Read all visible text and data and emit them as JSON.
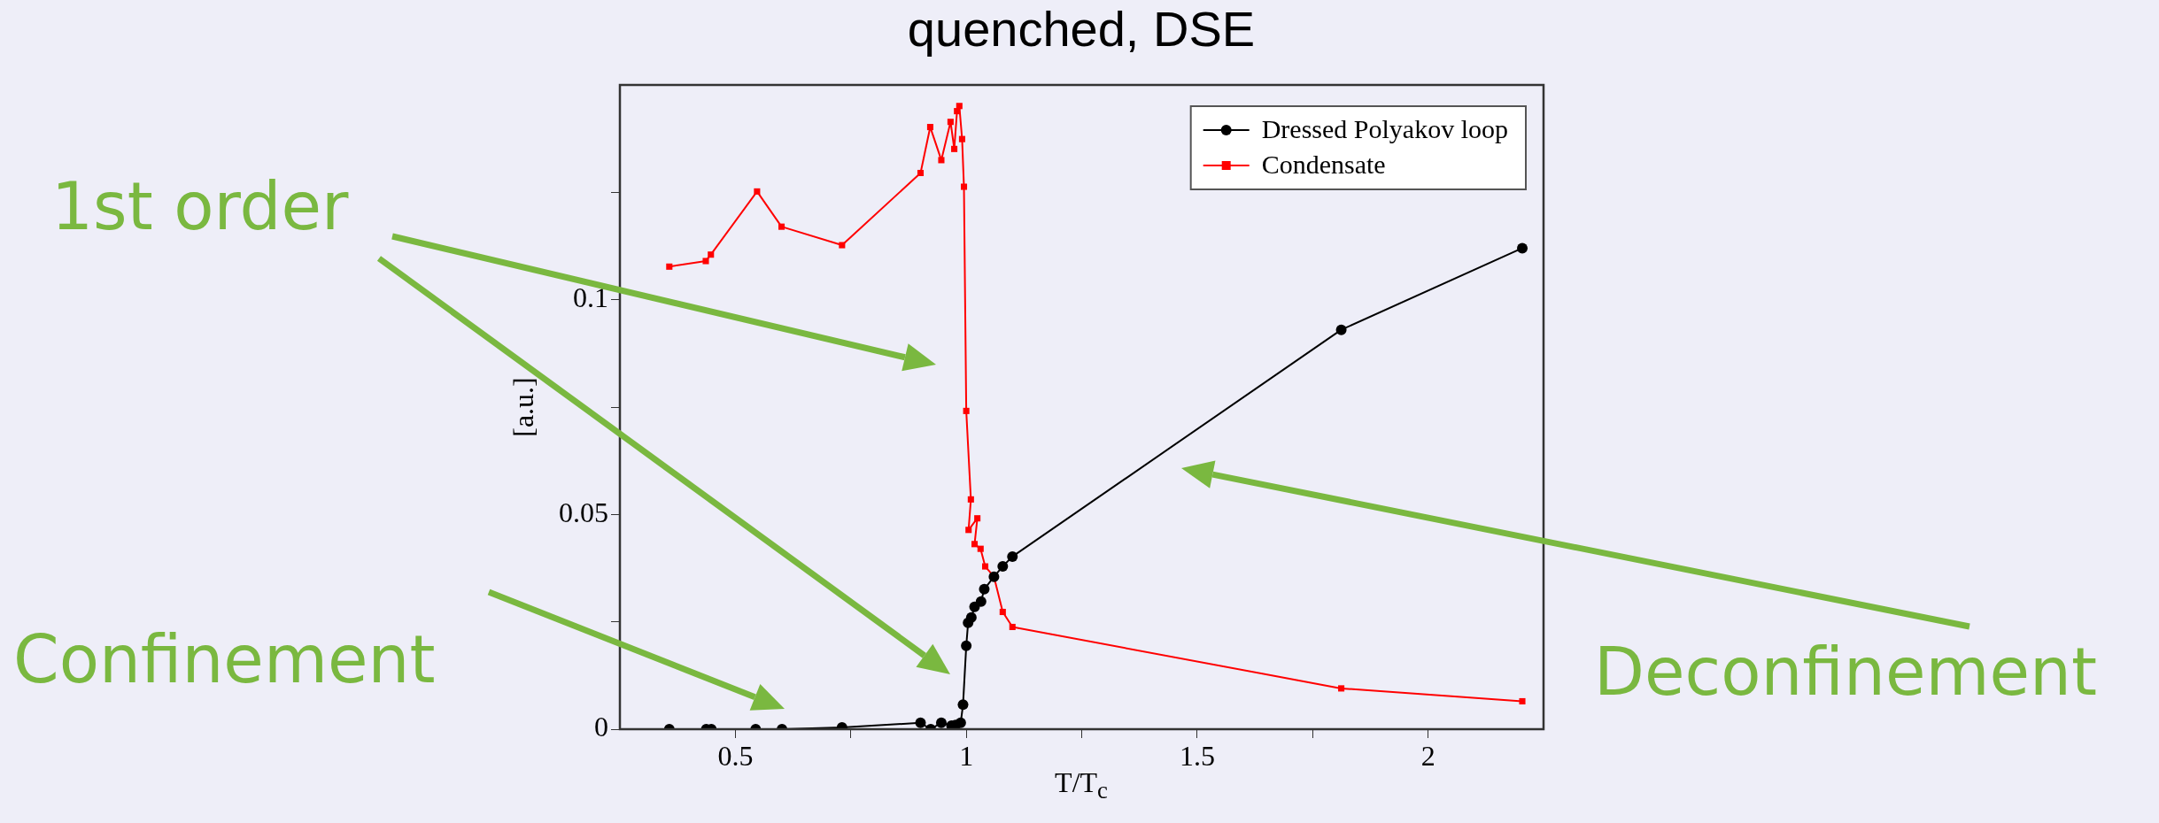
{
  "chart_data": {
    "type": "line",
    "title": "quenched, DSE",
    "xlabel": "T/T$_{c}$",
    "ylabel": "[a.u.]",
    "xlim": [
      0.25,
      2.25
    ],
    "xticks": [
      0.5,
      {
        "value": 0.75,
        "label": null
      },
      1,
      {
        "value": 1.25,
        "label": null
      },
      1.5,
      {
        "value": 1.75,
        "label": null
      },
      2
    ],
    "ylim": [
      0,
      0.15
    ],
    "yticks": [
      0,
      {
        "value": 0.025,
        "label": null
      },
      0.05,
      {
        "value": 0.075,
        "label": null
      },
      0.1,
      {
        "value": 0.125,
        "label": null
      }
    ],
    "grid": false,
    "legend": "top right",
    "line_style": "solid",
    "series": [
      {
        "name": "Dressed Polyakov loop",
        "color": "#000000",
        "marker": "circle",
        "x": [
          0.357,
          0.437,
          0.448,
          0.544,
          0.601,
          0.731,
          0.901,
          0.923,
          0.946,
          0.968,
          0.977,
          0.988,
          0.993,
          1.0,
          1.004,
          1.011,
          1.018,
          1.032,
          1.039,
          1.06,
          1.079,
          1.1,
          1.812,
          2.204
        ],
        "values": [
          0,
          0,
          0,
          0,
          0,
          0.0004,
          0.0015,
          0,
          0.0015,
          0.0008,
          0.001,
          0.0015,
          0.0057,
          0.0194,
          0.0248,
          0.026,
          0.0285,
          0.0297,
          0.0326,
          0.0355,
          0.0379,
          0.0402,
          0.093,
          0.112
        ]
      },
      {
        "name": "Condensate",
        "color": "#ff0000",
        "marker": "square",
        "x": [
          0.357,
          0.436,
          0.447,
          0.547,
          0.6,
          0.731,
          0.901,
          0.922,
          0.946,
          0.966,
          0.974,
          0.98,
          0.985,
          0.991,
          0.995,
          1.0,
          1.01,
          1.005,
          1.024,
          1.018,
          1.031,
          1.041,
          1.06,
          1.079,
          1.1,
          1.812,
          2.204
        ],
        "values": [
          0.1077,
          0.109,
          0.1105,
          0.1252,
          0.117,
          0.1127,
          0.1295,
          0.1402,
          0.1325,
          0.1414,
          0.1351,
          0.1439,
          0.1451,
          0.1374,
          0.1263,
          0.0741,
          0.0535,
          0.0464,
          0.0491,
          0.0431,
          0.042,
          0.0379,
          0.0355,
          0.0273,
          0.0238,
          0.0095,
          0.0065
        ]
      }
    ],
    "annotations": [
      "1st order",
      "Confinement",
      "Deconfinement"
    ]
  }
}
